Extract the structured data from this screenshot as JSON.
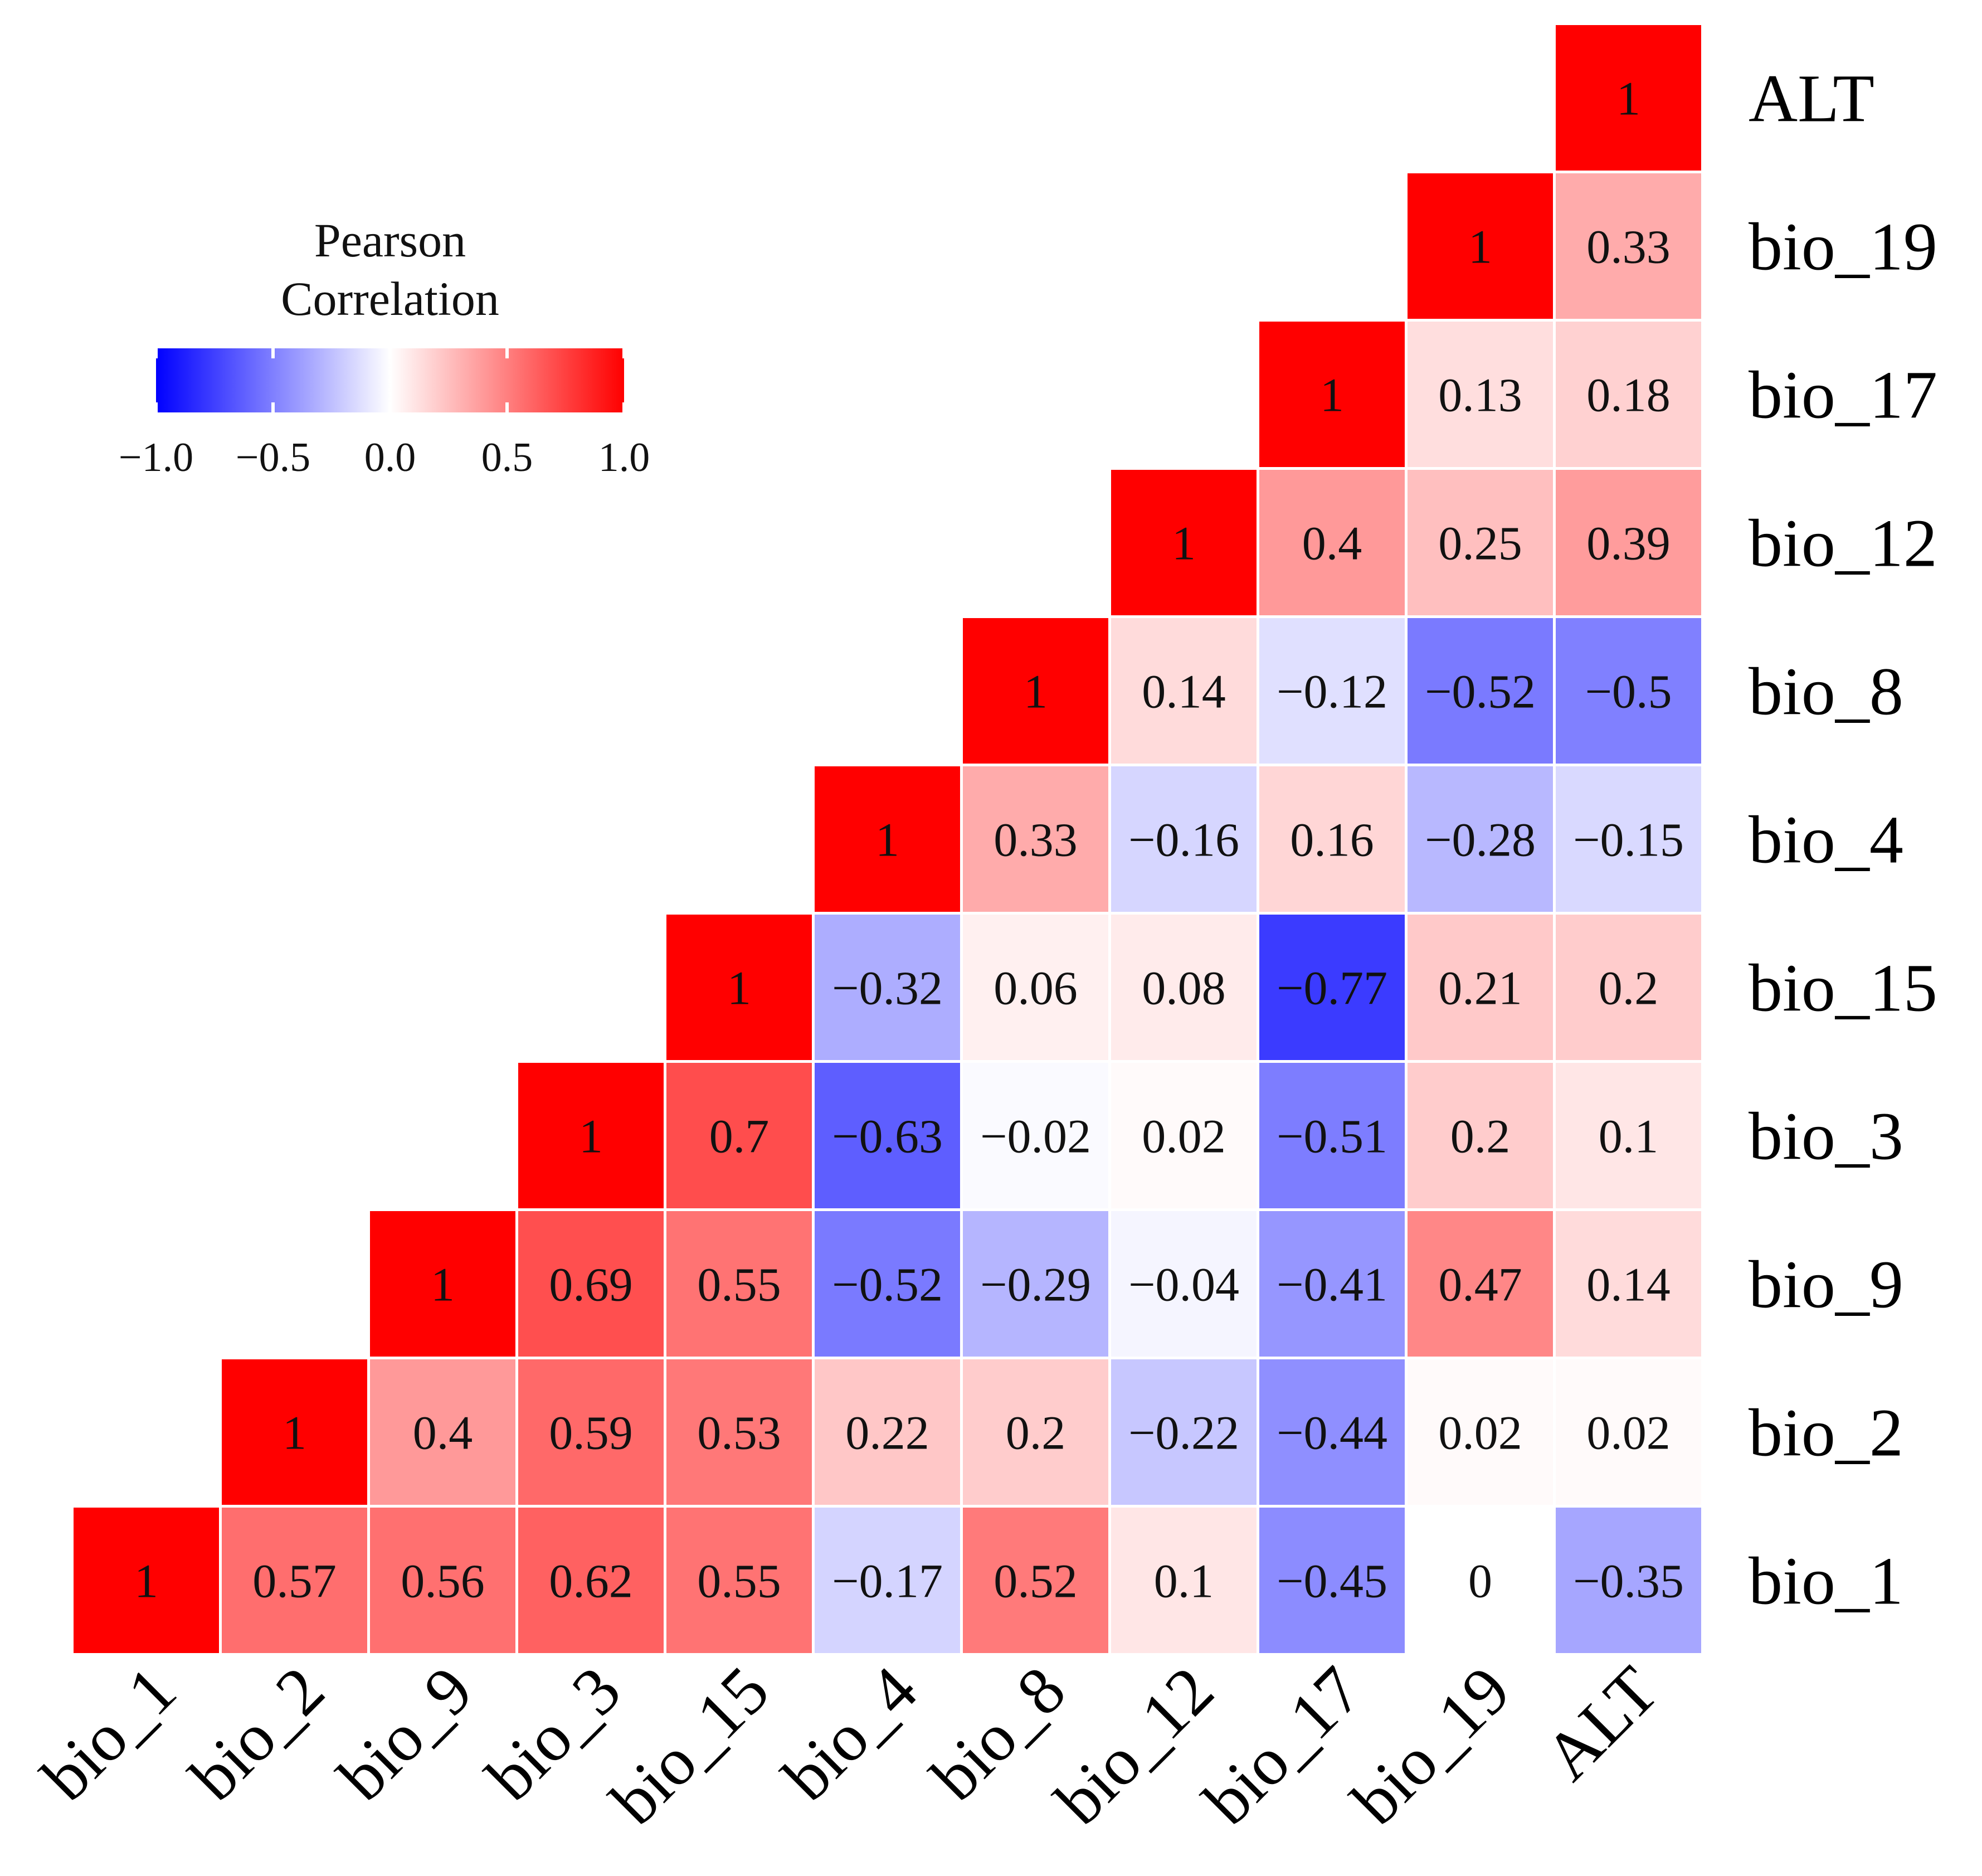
{
  "chart_data": {
    "type": "heatmap",
    "variant": "lower-triangular correlation matrix",
    "variables": [
      "bio_1",
      "bio_2",
      "bio_9",
      "bio_3",
      "bio_15",
      "bio_4",
      "bio_8",
      "bio_12",
      "bio_17",
      "bio_19",
      "ALT"
    ],
    "matrix": [
      [
        1,
        0.57,
        0.56,
        0.62,
        0.55,
        -0.17,
        0.52,
        0.1,
        -0.45,
        0,
        -0.35
      ],
      [
        null,
        1,
        0.4,
        0.59,
        0.53,
        0.22,
        0.2,
        -0.22,
        -0.44,
        0.02,
        0.02
      ],
      [
        null,
        null,
        1,
        0.69,
        0.55,
        -0.52,
        -0.29,
        -0.04,
        -0.41,
        0.47,
        0.14
      ],
      [
        null,
        null,
        null,
        1,
        0.7,
        -0.63,
        -0.02,
        0.02,
        -0.51,
        0.2,
        0.1
      ],
      [
        null,
        null,
        null,
        null,
        1,
        -0.32,
        0.06,
        0.08,
        -0.77,
        0.21,
        0.2
      ],
      [
        null,
        null,
        null,
        null,
        null,
        1,
        0.33,
        -0.16,
        0.16,
        -0.28,
        -0.15
      ],
      [
        null,
        null,
        null,
        null,
        null,
        null,
        1,
        0.14,
        -0.12,
        -0.52,
        -0.5
      ],
      [
        null,
        null,
        null,
        null,
        null,
        null,
        null,
        1,
        0.4,
        0.25,
        0.39
      ],
      [
        null,
        null,
        null,
        null,
        null,
        null,
        null,
        null,
        1,
        0.13,
        0.18
      ],
      [
        null,
        null,
        null,
        null,
        null,
        null,
        null,
        null,
        null,
        1,
        0.33
      ],
      [
        null,
        null,
        null,
        null,
        null,
        null,
        null,
        null,
        null,
        null,
        1
      ]
    ],
    "labels_text": [
      [
        "1",
        "0.57",
        "0.56",
        "0.62",
        "0.55",
        "−0.17",
        "0.52",
        "0.1",
        "−0.45",
        "0",
        "−0.35"
      ],
      [
        null,
        "1",
        "0.4",
        "0.59",
        "0.53",
        "0.22",
        "0.2",
        "−0.22",
        "−0.44",
        "0.02",
        "0.02"
      ],
      [
        null,
        null,
        "1",
        "0.69",
        "0.55",
        "−0.52",
        "−0.29",
        "−0.04",
        "−0.41",
        "0.47",
        "0.14"
      ],
      [
        null,
        null,
        null,
        "1",
        "0.7",
        "−0.63",
        "−0.02",
        "0.02",
        "−0.51",
        "0.2",
        "0.1"
      ],
      [
        null,
        null,
        null,
        null,
        "1",
        "−0.32",
        "0.06",
        "0.08",
        "−0.77",
        "0.21",
        "0.2"
      ],
      [
        null,
        null,
        null,
        null,
        null,
        "1",
        "0.33",
        "−0.16",
        "0.16",
        "−0.28",
        "−0.15"
      ],
      [
        null,
        null,
        null,
        null,
        null,
        null,
        "1",
        "0.14",
        "−0.12",
        "−0.52",
        "−0.5"
      ],
      [
        null,
        null,
        null,
        null,
        null,
        null,
        null,
        "1",
        "0.4",
        "0.25",
        "0.39"
      ],
      [
        null,
        null,
        null,
        null,
        null,
        null,
        null,
        null,
        "1",
        "0.13",
        "0.18"
      ],
      [
        null,
        null,
        null,
        null,
        null,
        null,
        null,
        null,
        null,
        "1",
        "0.33"
      ],
      [
        null,
        null,
        null,
        null,
        null,
        null,
        null,
        null,
        null,
        null,
        "1"
      ]
    ],
    "x_labels": [
      "bio_1",
      "bio_2",
      "bio_9",
      "bio_3",
      "bio_15",
      "bio_4",
      "bio_8",
      "bio_12",
      "bio_17",
      "bio_19",
      "ALT"
    ],
    "y_labels_top_to_bottom": [
      "ALT",
      "bio_19",
      "bio_17",
      "bio_12",
      "bio_8",
      "bio_4",
      "bio_15",
      "bio_3",
      "bio_9",
      "bio_2",
      "bio_1"
    ],
    "legend": {
      "title_line1": "Pearson",
      "title_line2": "Correlation",
      "range": [
        -1.0,
        1.0
      ],
      "ticks": [
        -1.0,
        -0.5,
        0.0,
        0.5,
        1.0
      ],
      "tick_labels": [
        "−1.0",
        "−0.5",
        "0.0",
        "0.5",
        "1.0"
      ],
      "placement": "top-left"
    },
    "colors": {
      "low": "#0000ff",
      "mid": "#ffffff",
      "high": "#ff0000"
    }
  }
}
